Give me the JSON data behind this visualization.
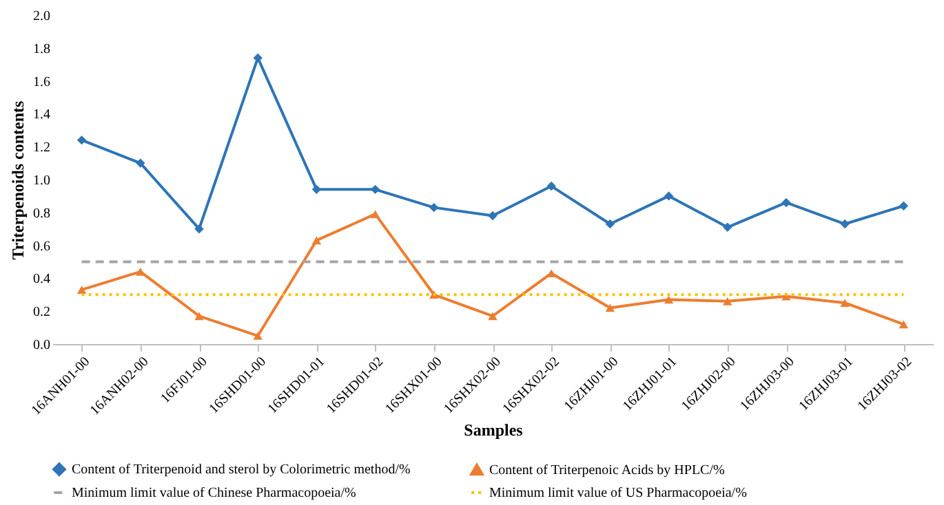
{
  "chart_data": {
    "type": "line",
    "xlabel": "Samples",
    "ylabel": "Triterpenoids contents",
    "categories": [
      "16ANH01-00",
      "16ANH02-00",
      "16FJ01-00",
      "16SHD01-00",
      "16SHD01-01",
      "16SHD01-02",
      "16SHX01-00",
      "16SHX02-00",
      "16SHX02-02",
      "16ZHJ01-00",
      "16ZHJ01-01",
      "16ZHJ02-00",
      "16ZHJ03-00",
      "16ZHJ03-01",
      "16ZHJ03-02"
    ],
    "series": [
      {
        "name": "Content of Triterpenoid and sterol by Colorimetric method/%",
        "color": "#2e75b6",
        "marker": "diamond",
        "line_style": "solid",
        "values": [
          1.24,
          1.1,
          0.7,
          1.74,
          0.94,
          0.94,
          0.83,
          0.78,
          0.96,
          0.73,
          0.9,
          0.71,
          0.86,
          0.73,
          0.84
        ]
      },
      {
        "name": "Content of Triterpenoic Acids by HPLC/%",
        "color": "#ed7d31",
        "marker": "triangle",
        "line_style": "solid",
        "values": [
          0.33,
          0.44,
          0.17,
          0.05,
          0.63,
          0.79,
          0.3,
          0.17,
          0.43,
          0.22,
          0.27,
          0.26,
          0.29,
          0.25,
          0.12
        ]
      },
      {
        "name": "Minimum limit value of Chinese Pharmacopoeia/%",
        "color": "#a5a5a5",
        "marker": "none",
        "line_style": "dashed",
        "values": [
          0.5,
          0.5,
          0.5,
          0.5,
          0.5,
          0.5,
          0.5,
          0.5,
          0.5,
          0.5,
          0.5,
          0.5,
          0.5,
          0.5,
          0.5
        ]
      },
      {
        "name": "Minimum limit value of US Pharmacopoeia/%",
        "color": "#ffc000",
        "marker": "none",
        "line_style": "dotted",
        "values": [
          0.3,
          0.3,
          0.3,
          0.3,
          0.3,
          0.3,
          0.3,
          0.3,
          0.3,
          0.3,
          0.3,
          0.3,
          0.3,
          0.3,
          0.3
        ]
      }
    ],
    "ylim": [
      0,
      2
    ],
    "yticks": [
      {
        "value": 0,
        "label": "0.0"
      },
      {
        "value": 0.2,
        "label": "0.2"
      },
      {
        "value": 0.4,
        "label": "0.4"
      },
      {
        "value": 0.6,
        "label": "0.6"
      },
      {
        "value": 0.8,
        "label": "0.8"
      },
      {
        "value": 1,
        "label": "1.0"
      },
      {
        "value": 1.2,
        "label": "1.2"
      },
      {
        "value": 1.4,
        "label": "1.4"
      },
      {
        "value": 1.6,
        "label": "1.6"
      },
      {
        "value": 1.8,
        "label": "1.8"
      },
      {
        "value": 2,
        "label": "2.0"
      }
    ],
    "grid": false,
    "legend": "bottom"
  }
}
